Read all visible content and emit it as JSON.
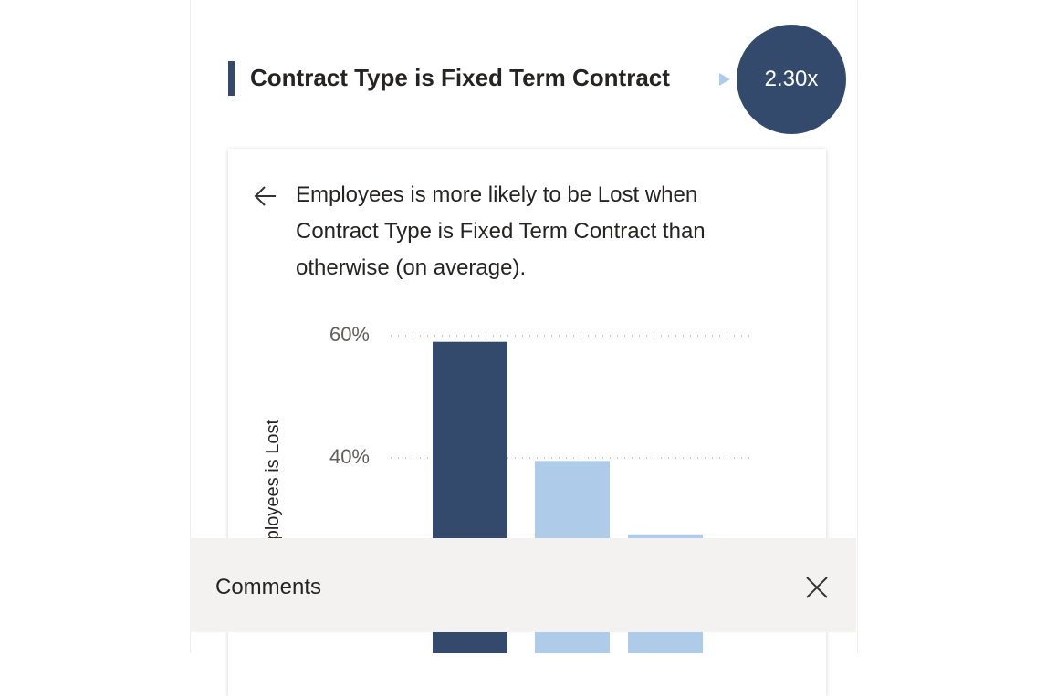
{
  "card": {
    "title": "Contract Type is Fixed Term Contract",
    "badge": "2.30x",
    "description": "Employees is more likely to be Lost when Contract Type is Fixed Term Contract than otherwise (on average)."
  },
  "chart_data": {
    "type": "bar",
    "y_label": "Employees is Lost",
    "categories": [
      null,
      null,
      null
    ],
    "values": [
      59,
      39.5,
      27.5
    ],
    "colors": [
      "#344a6c",
      "#aecbe9",
      "#aecbe9"
    ],
    "ylim": [
      0,
      60
    ],
    "yticks": [
      {
        "value": 40,
        "label": "40%"
      },
      {
        "value": 60,
        "label": "60%"
      }
    ],
    "grid": true
  },
  "comments": {
    "title": "Comments"
  }
}
